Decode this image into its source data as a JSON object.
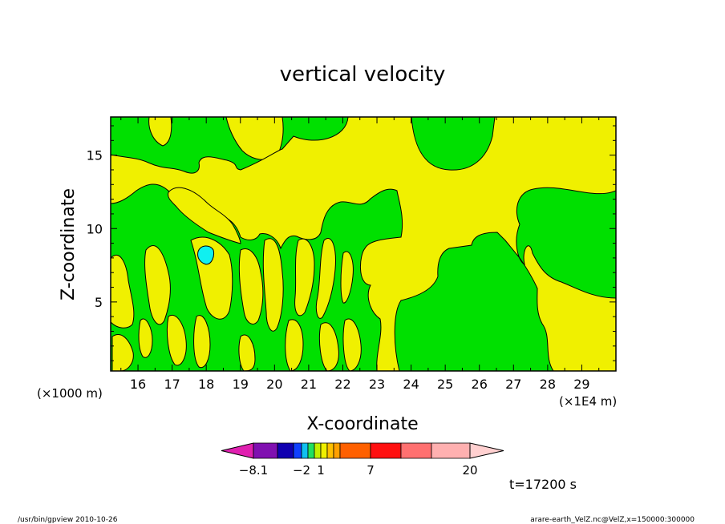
{
  "chart_data": {
    "type": "heatmap",
    "title": "vertical velocity",
    "xlabel": "X-coordinate",
    "ylabel": "Z-coordinate",
    "x_unit_left": "(×1000 m)",
    "x_unit_right": "(×1E4 m)",
    "xlim": [
      15.2,
      30.0
    ],
    "ylim": [
      0.3,
      17.6
    ],
    "x_ticks": [
      16,
      17,
      18,
      19,
      20,
      21,
      22,
      23,
      24,
      25,
      26,
      27,
      28,
      29
    ],
    "y_ticks": [
      5,
      10,
      15
    ],
    "time_label": "t=17200 s",
    "colorbar": {
      "colors": [
        "#e020b0",
        "#8010b0",
        "#1000b0",
        "#1040ff",
        "#10c0f0",
        "#20e060",
        "#c0f000",
        "#f0f000",
        "#ffc000",
        "#ffa000",
        "#ff6000",
        "#ff1010",
        "#ff7070",
        "#ffb0b0",
        "#ffd0d0"
      ],
      "labels": [
        "-8.1",
        "-2",
        "1",
        "7",
        "20"
      ]
    },
    "regions": {
      "positive_color": "#f0f000",
      "near_zero_color": "#00e000",
      "negative_color": "#10f0f0"
    }
  },
  "footer": {
    "left": "/usr/bin/gpview   2010-10-26",
    "right": "arare-earth_VelZ.nc@VelZ,x=150000:300000"
  }
}
